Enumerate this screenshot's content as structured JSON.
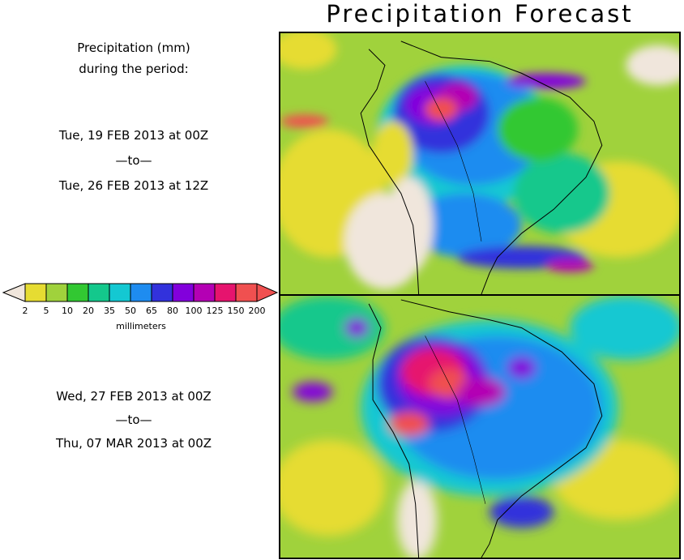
{
  "title": "Precipitation Forecast",
  "legend_header": {
    "line1": "Precipitation (mm)",
    "line2": "during the period:"
  },
  "period1": {
    "start": "Tue, 19 FEB 2013 at 00Z",
    "sep": "—to—",
    "end": "Tue, 26 FEB 2013 at 12Z"
  },
  "period2": {
    "start": "Wed, 27 FEB 2013 at 00Z",
    "sep": "—to—",
    "end": "Thu, 07 MAR 2013 at 00Z"
  },
  "colorbar": {
    "unit_label": "millimeters",
    "ticks": [
      "2",
      "5",
      "10",
      "20",
      "35",
      "50",
      "65",
      "80",
      "100",
      "125",
      "150",
      "200"
    ],
    "colors": [
      "#e6dc32",
      "#a0d23c",
      "#32c832",
      "#14c88c",
      "#14c8d2",
      "#1e8cf0",
      "#3232dc",
      "#8200dc",
      "#b400b4",
      "#e6146e",
      "#f05050"
    ],
    "under_color": "#f0e6dc",
    "over_color": "#f05050"
  }
}
